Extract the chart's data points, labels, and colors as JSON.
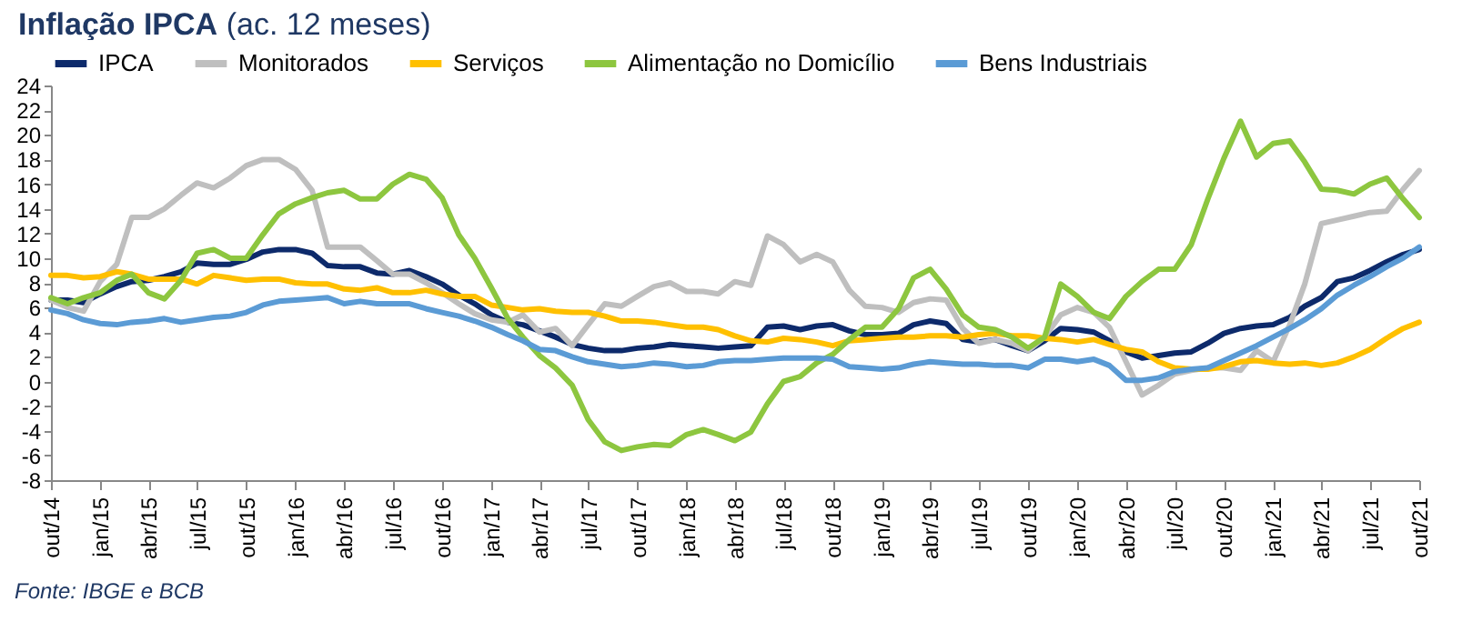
{
  "chart_data": {
    "type": "line",
    "title": "Inflação IPCA",
    "subtitle": "(ac. 12 meses)",
    "x": [
      "2014-10",
      "2014-11",
      "2014-12",
      "2015-01",
      "2015-02",
      "2015-03",
      "2015-04",
      "2015-05",
      "2015-06",
      "2015-07",
      "2015-08",
      "2015-09",
      "2015-10",
      "2015-11",
      "2015-12",
      "2016-01",
      "2016-02",
      "2016-03",
      "2016-04",
      "2016-05",
      "2016-06",
      "2016-07",
      "2016-08",
      "2016-09",
      "2016-10",
      "2016-11",
      "2016-12",
      "2017-01",
      "2017-02",
      "2017-03",
      "2017-04",
      "2017-05",
      "2017-06",
      "2017-07",
      "2017-08",
      "2017-09",
      "2017-10",
      "2017-11",
      "2017-12",
      "2018-01",
      "2018-02",
      "2018-03",
      "2018-04",
      "2018-05",
      "2018-06",
      "2018-07",
      "2018-08",
      "2018-09",
      "2018-10",
      "2018-11",
      "2018-12",
      "2019-01",
      "2019-02",
      "2019-03",
      "2019-04",
      "2019-05",
      "2019-06",
      "2019-07",
      "2019-08",
      "2019-09",
      "2019-10",
      "2019-11",
      "2019-12",
      "2020-01",
      "2020-02",
      "2020-03",
      "2020-04",
      "2020-05",
      "2020-06",
      "2020-07",
      "2020-08",
      "2020-09",
      "2020-10",
      "2020-11",
      "2020-12",
      "2021-01",
      "2021-02",
      "2021-03",
      "2021-04",
      "2021-05",
      "2021-06",
      "2021-07",
      "2021-08",
      "2021-09",
      "2021-10"
    ],
    "series": [
      {
        "name": "IPCA",
        "color": "#0d2a6b",
        "values": [
          6.6,
          6.6,
          6.4,
          7.1,
          7.7,
          8.1,
          8.2,
          8.5,
          8.9,
          9.6,
          9.5,
          9.5,
          9.9,
          10.5,
          10.7,
          10.7,
          10.4,
          9.4,
          9.3,
          9.3,
          8.8,
          8.7,
          9.0,
          8.5,
          7.9,
          7.0,
          6.3,
          5.4,
          4.8,
          4.6,
          4.1,
          3.6,
          3.0,
          2.7,
          2.5,
          2.5,
          2.7,
          2.8,
          3.0,
          2.9,
          2.8,
          2.7,
          2.8,
          2.9,
          4.4,
          4.5,
          4.2,
          4.5,
          4.6,
          4.1,
          3.8,
          3.8,
          3.9,
          4.6,
          4.9,
          4.7,
          3.4,
          3.2,
          3.4,
          2.9,
          2.5,
          3.3,
          4.3,
          4.2,
          4.0,
          3.3,
          2.4,
          1.9,
          2.1,
          2.3,
          2.4,
          3.1,
          3.9,
          4.3,
          4.5,
          4.6,
          5.2,
          6.1,
          6.8,
          8.1,
          8.4,
          9.0,
          9.7,
          10.3,
          10.7
        ]
      },
      {
        "name": "Monitorados",
        "color": "#bfbfbf",
        "values": [
          6.6,
          6.0,
          5.7,
          8.1,
          9.5,
          13.3,
          13.3,
          14.0,
          15.1,
          16.1,
          15.7,
          16.5,
          17.5,
          18.0,
          18.0,
          17.2,
          15.5,
          10.9,
          10.9,
          10.9,
          9.8,
          8.7,
          8.7,
          8.0,
          7.2,
          6.3,
          5.5,
          5.0,
          4.8,
          5.4,
          4.0,
          4.3,
          2.9,
          4.6,
          6.3,
          6.1,
          6.9,
          7.7,
          8.0,
          7.3,
          7.3,
          7.1,
          8.1,
          7.8,
          11.8,
          11.1,
          9.7,
          10.3,
          9.7,
          7.4,
          6.1,
          6.0,
          5.6,
          6.4,
          6.7,
          6.6,
          4.3,
          3.1,
          3.4,
          3.1,
          2.5,
          3.6,
          5.4,
          6.0,
          5.6,
          4.4,
          1.6,
          -1.1,
          -0.3,
          0.6,
          0.9,
          1.1,
          1.1,
          0.9,
          2.5,
          1.6,
          4.6,
          7.9,
          12.8,
          13.1,
          13.4,
          13.7,
          13.8,
          15.6,
          17.1
        ]
      },
      {
        "name": "Serviços",
        "color": "#ffc000",
        "values": [
          8.6,
          8.6,
          8.4,
          8.5,
          8.9,
          8.7,
          8.3,
          8.3,
          8.3,
          7.9,
          8.6,
          8.4,
          8.2,
          8.3,
          8.3,
          8.0,
          7.9,
          7.9,
          7.5,
          7.4,
          7.6,
          7.2,
          7.2,
          7.4,
          7.1,
          6.9,
          6.9,
          6.2,
          6.0,
          5.8,
          5.9,
          5.7,
          5.6,
          5.6,
          5.3,
          4.9,
          4.9,
          4.8,
          4.6,
          4.4,
          4.4,
          4.2,
          3.7,
          3.3,
          3.2,
          3.5,
          3.4,
          3.2,
          2.9,
          3.3,
          3.4,
          3.5,
          3.6,
          3.6,
          3.7,
          3.7,
          3.6,
          3.8,
          3.9,
          3.7,
          3.7,
          3.5,
          3.4,
          3.2,
          3.4,
          3.0,
          2.6,
          2.4,
          1.6,
          1.1,
          1.0,
          1.0,
          1.2,
          1.6,
          1.7,
          1.5,
          1.4,
          1.5,
          1.3,
          1.5,
          2.0,
          2.6,
          3.5,
          4.3,
          4.8
        ]
      },
      {
        "name": "Alimentação no Domicílio",
        "color": "#8dc63f",
        "values": [
          6.8,
          6.3,
          6.8,
          7.2,
          8.2,
          8.7,
          7.2,
          6.7,
          8.2,
          10.4,
          10.7,
          10.0,
          10.0,
          11.9,
          13.6,
          14.4,
          14.9,
          15.3,
          15.5,
          14.8,
          14.8,
          16.0,
          16.8,
          16.4,
          14.9,
          11.9,
          10.0,
          7.6,
          5.1,
          3.6,
          2.1,
          1.1,
          -0.3,
          -3.1,
          -4.9,
          -5.6,
          -5.3,
          -5.1,
          -5.2,
          -4.3,
          -3.9,
          -4.3,
          -4.8,
          -4.1,
          -1.8,
          0.0,
          0.4,
          1.5,
          2.2,
          3.4,
          4.4,
          4.4,
          5.9,
          8.4,
          9.1,
          7.5,
          5.4,
          4.4,
          4.2,
          3.6,
          2.7,
          3.6,
          7.9,
          6.9,
          5.6,
          5.1,
          6.9,
          8.1,
          9.1,
          9.1,
          11.1,
          14.8,
          18.1,
          21.1,
          18.2,
          19.3,
          19.5,
          17.8,
          15.6,
          15.5,
          15.2,
          16.0,
          16.5,
          14.8,
          13.3
        ]
      },
      {
        "name": "Bens Industriais",
        "color": "#5b9bd5",
        "values": [
          5.8,
          5.5,
          5.0,
          4.7,
          4.6,
          4.8,
          4.9,
          5.1,
          4.8,
          5.0,
          5.2,
          5.3,
          5.6,
          6.2,
          6.5,
          6.6,
          6.7,
          6.8,
          6.3,
          6.5,
          6.3,
          6.3,
          6.3,
          5.9,
          5.6,
          5.3,
          4.9,
          4.4,
          3.8,
          3.3,
          2.6,
          2.5,
          2.0,
          1.6,
          1.4,
          1.2,
          1.3,
          1.5,
          1.4,
          1.2,
          1.3,
          1.6,
          1.7,
          1.7,
          1.8,
          1.9,
          1.9,
          1.9,
          1.8,
          1.2,
          1.1,
          1.0,
          1.1,
          1.4,
          1.6,
          1.5,
          1.4,
          1.4,
          1.3,
          1.3,
          1.1,
          1.8,
          1.8,
          1.6,
          1.8,
          1.3,
          0.1,
          0.1,
          0.3,
          0.8,
          1.0,
          1.1,
          1.7,
          2.3,
          2.9,
          3.6,
          4.3,
          5.0,
          5.9,
          7.0,
          7.8,
          8.5,
          9.3,
          10.0,
          10.9
        ]
      }
    ],
    "xlim": [
      "2014-10",
      "2021-10"
    ],
    "xticks": [
      {
        "value": "2014-10",
        "label": "out/14"
      },
      {
        "value": "2015-01",
        "label": "jan/15"
      },
      {
        "value": "2015-04",
        "label": "abr/15"
      },
      {
        "value": "2015-07",
        "label": "jul/15"
      },
      {
        "value": "2015-10",
        "label": "out/15"
      },
      {
        "value": "2016-01",
        "label": "jan/16"
      },
      {
        "value": "2016-04",
        "label": "abr/16"
      },
      {
        "value": "2016-07",
        "label": "jul/16"
      },
      {
        "value": "2016-10",
        "label": "out/16"
      },
      {
        "value": "2017-01",
        "label": "jan/17"
      },
      {
        "value": "2017-04",
        "label": "abr/17"
      },
      {
        "value": "2017-07",
        "label": "jul/17"
      },
      {
        "value": "2017-10",
        "label": "out/17"
      },
      {
        "value": "2018-01",
        "label": "jan/18"
      },
      {
        "value": "2018-04",
        "label": "abr/18"
      },
      {
        "value": "2018-07",
        "label": "jul/18"
      },
      {
        "value": "2018-10",
        "label": "out/18"
      },
      {
        "value": "2019-01",
        "label": "jan/19"
      },
      {
        "value": "2019-04",
        "label": "abr/19"
      },
      {
        "value": "2019-07",
        "label": "jul/19"
      },
      {
        "value": "2019-10",
        "label": "out/19"
      },
      {
        "value": "2020-01",
        "label": "jan/20"
      },
      {
        "value": "2020-04",
        "label": "abr/20"
      },
      {
        "value": "2020-07",
        "label": "jul/20"
      },
      {
        "value": "2020-10",
        "label": "out/20"
      },
      {
        "value": "2021-01",
        "label": "jan/21"
      },
      {
        "value": "2021-04",
        "label": "abr/21"
      },
      {
        "value": "2021-07",
        "label": "jul/21"
      },
      {
        "value": "2021-10",
        "label": "out/21"
      }
    ],
    "ylim": [
      -8,
      24
    ],
    "yticks": [
      -8,
      -6,
      -4,
      -2,
      0,
      2,
      4,
      6,
      8,
      10,
      12,
      14,
      16,
      18,
      20,
      22,
      24
    ],
    "legend": "top",
    "annotations": [
      "Fonte: IBGE e BCB"
    ]
  }
}
